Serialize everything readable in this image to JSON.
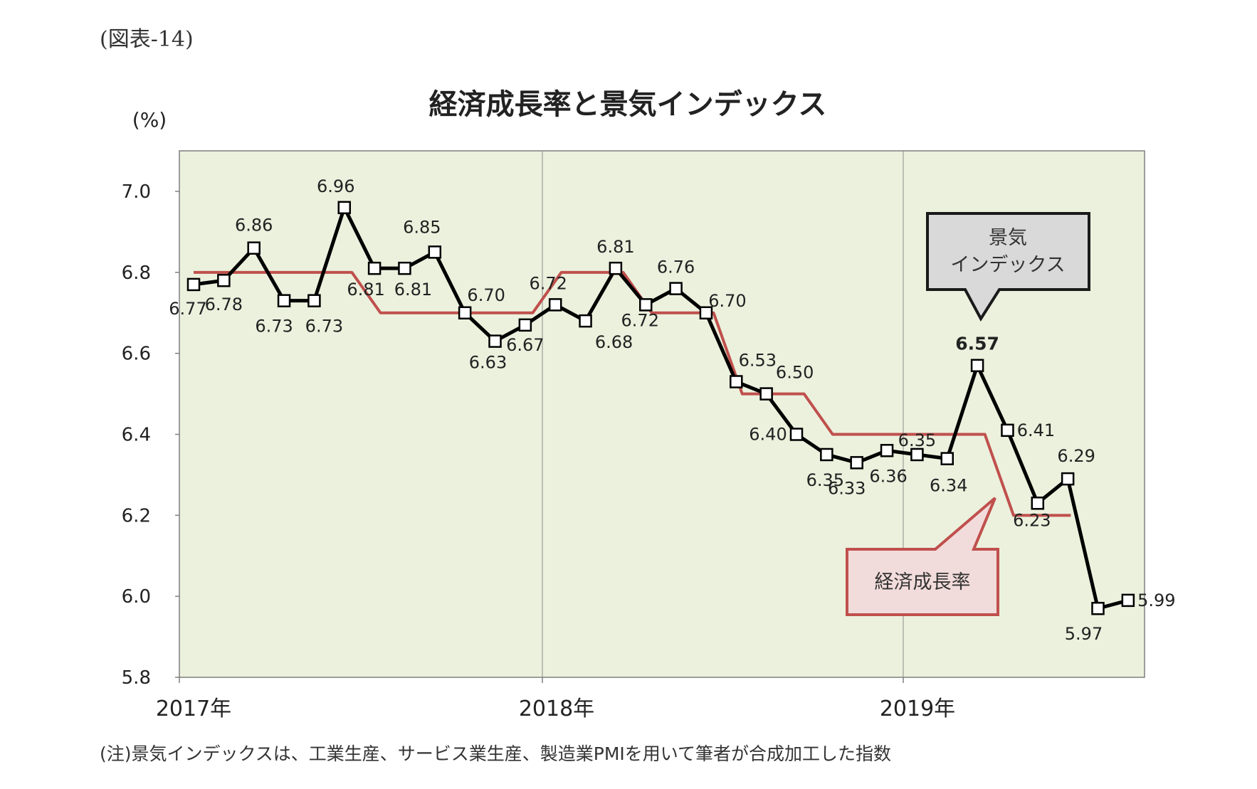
{
  "figure_label": "(図表-14)",
  "note": "(注)景気インデックスは、工業生産、サービス業生産、製造業PMIを用いて筆者が合成加工した指数",
  "chart_data": {
    "type": "line",
    "title": "経済成長率と景気インデックス",
    "ylabel": "(%)",
    "ylim": [
      5.8,
      7.0
    ],
    "yticks": [
      "5.8",
      "6.0",
      "6.2",
      "6.4",
      "6.6",
      "6.8",
      "7.0"
    ],
    "xtick_labels": [
      "2017年",
      "2018年",
      "2019年"
    ],
    "xtick_month_index": [
      0,
      12,
      24
    ],
    "months_total": 32,
    "grid": "vertical",
    "plot_bg": "#ebf1dd",
    "series": [
      {
        "name": "景気インデックス",
        "color": "#000000",
        "marker": "square",
        "x": [
          0,
          1,
          2,
          3,
          4,
          5,
          6,
          7,
          8,
          9,
          10,
          11,
          12,
          13,
          14,
          15,
          16,
          17,
          18,
          19,
          20,
          21,
          22,
          23,
          24,
          25,
          26,
          27,
          28,
          29,
          30,
          31
        ],
        "values": [
          6.77,
          6.78,
          6.86,
          6.73,
          6.73,
          6.96,
          6.81,
          6.81,
          6.85,
          6.7,
          6.63,
          6.67,
          6.72,
          6.68,
          6.81,
          6.72,
          6.76,
          6.7,
          6.53,
          6.5,
          6.4,
          6.35,
          6.33,
          6.36,
          6.35,
          6.34,
          6.57,
          6.41,
          6.23,
          6.29,
          5.97,
          5.99
        ],
        "labels": [
          "6.77",
          "6.78",
          "6.86",
          "6.73",
          "6.73",
          "6.96",
          "6.81",
          "6.81",
          "6.85",
          "6.70",
          "6.63",
          "6.67",
          "6.72",
          "6.68",
          "6.81",
          "6.72",
          "6.76",
          "6.70",
          "6.53",
          "6.50",
          "6.40",
          "6.35",
          "6.33",
          "6.36",
          "6.35",
          "6.34",
          "6.57",
          "6.41",
          "6.23",
          "6.29",
          "5.97",
          "5.99"
        ],
        "label_dx": [
          -8,
          0,
          0,
          -14,
          14,
          -12,
          -12,
          12,
          -18,
          30,
          -10,
          0,
          -10,
          40,
          0,
          -8,
          0,
          30,
          30,
          40,
          -40,
          -2,
          -14,
          2,
          0,
          2,
          0,
          40,
          -8,
          12,
          -20,
          40
        ],
        "label_dy": [
          34,
          34,
          -32,
          36,
          36,
          -30,
          30,
          30,
          -35,
          -25,
          30,
          28,
          -30,
          30,
          -30,
          22,
          -30,
          -17,
          -30,
          -30,
          0,
          36,
          36,
          36,
          -20,
          38,
          -30,
          0,
          24,
          -32,
          36,
          0
        ],
        "bold_label_index": 26
      },
      {
        "name": "経済成長率",
        "color": "#c0504d",
        "quarters": [
          {
            "q": "2017Q1",
            "value": 6.8
          },
          {
            "q": "2017Q2",
            "value": 6.8
          },
          {
            "q": "2017Q3",
            "value": 6.7
          },
          {
            "q": "2017Q4",
            "value": 6.7
          },
          {
            "q": "2018Q1",
            "value": 6.8
          },
          {
            "q": "2018Q2",
            "value": 6.7
          },
          {
            "q": "2018Q3",
            "value": 6.5
          },
          {
            "q": "2018Q4",
            "value": 6.4
          },
          {
            "q": "2019Q1",
            "value": 6.4
          },
          {
            "q": "2019Q2",
            "value": 6.2
          }
        ]
      }
    ],
    "callouts": [
      {
        "lines": [
          "景気",
          "インデックス"
        ],
        "fill": "#d9d9d9",
        "stroke": "#1a1a1a"
      },
      {
        "lines": [
          "経済成長率"
        ],
        "fill": "#f2dcdb",
        "stroke": "#c0504d"
      }
    ]
  }
}
